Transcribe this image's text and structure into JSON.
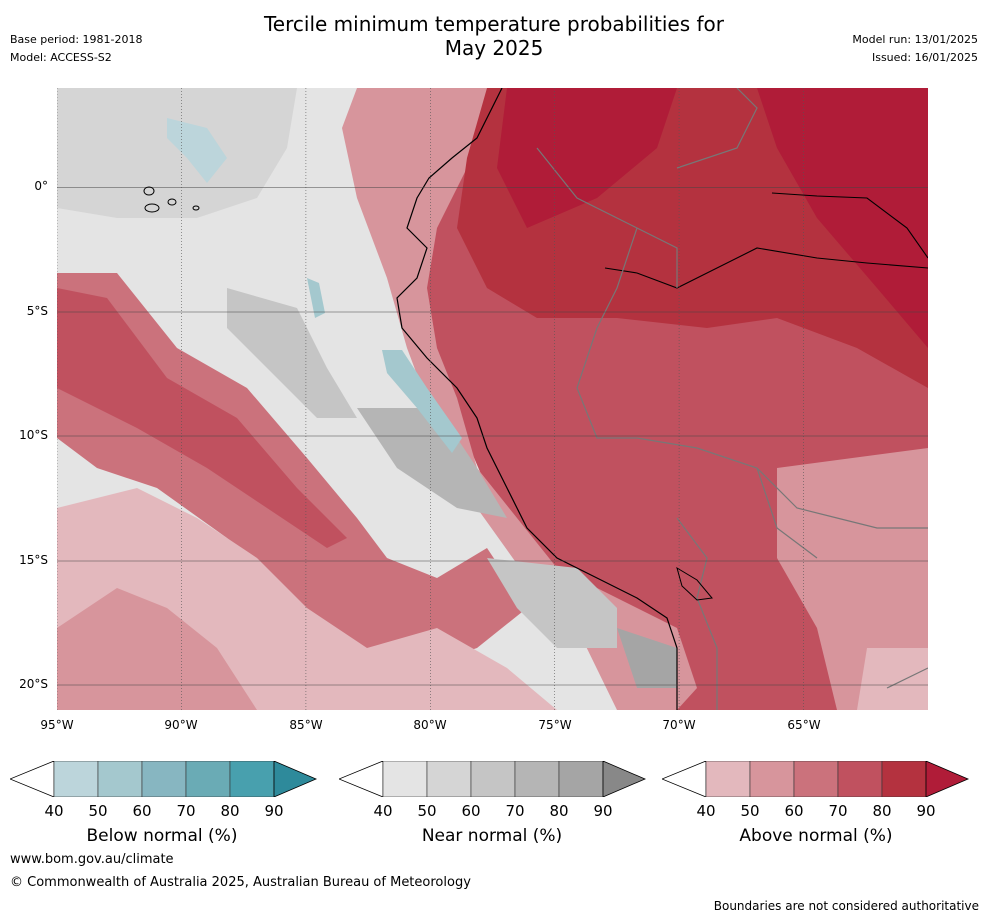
{
  "title": {
    "line1": "Tercile minimum temperature probabilities for",
    "line2": "May 2025"
  },
  "meta_left": {
    "base_period": "Base period: 1981-2018",
    "model": "Model: ACCESS-S2"
  },
  "meta_right": {
    "model_run": "Model run: 13/01/2025",
    "issued": "Issued: 16/01/2025"
  },
  "map": {
    "lon_range": [
      -95,
      -60
    ],
    "lat_range": [
      -21,
      4
    ],
    "lon_labels": [
      "95°W",
      "90°W",
      "85°W",
      "80°W",
      "75°W",
      "70°W",
      "65°W"
    ],
    "lat_labels": [
      "0°",
      "5°S",
      "10°S",
      "15°S",
      "20°S"
    ]
  },
  "colorbars": [
    {
      "label": "Below normal (%)",
      "ticks": [
        "40",
        "50",
        "60",
        "70",
        "80",
        "90"
      ],
      "colors": [
        "#ffffff",
        "#bcd5db",
        "#a4c8ce",
        "#87b6c1",
        "#6aabb5",
        "#48a0ae",
        "#2e8a9b"
      ]
    },
    {
      "label": "Near normal (%)",
      "ticks": [
        "40",
        "50",
        "60",
        "70",
        "80",
        "90"
      ],
      "colors": [
        "#ffffff",
        "#e4e4e4",
        "#d5d5d5",
        "#c5c5c5",
        "#b5b5b5",
        "#a5a5a5",
        "#888888"
      ]
    },
    {
      "label": "Above normal (%)",
      "ticks": [
        "40",
        "50",
        "60",
        "70",
        "80",
        "90"
      ],
      "colors": [
        "#ffffff",
        "#e3b8bd",
        "#d7959c",
        "#cb727c",
        "#c0515f",
        "#b4323f",
        "#b01c38"
      ]
    }
  ],
  "footer": {
    "url": "www.bom.gov.au/climate",
    "copyright": "© Commonwealth of Australia 2025, Australian Bureau of Meteorology",
    "disclaimer": "Boundaries are not considered authoritative"
  }
}
